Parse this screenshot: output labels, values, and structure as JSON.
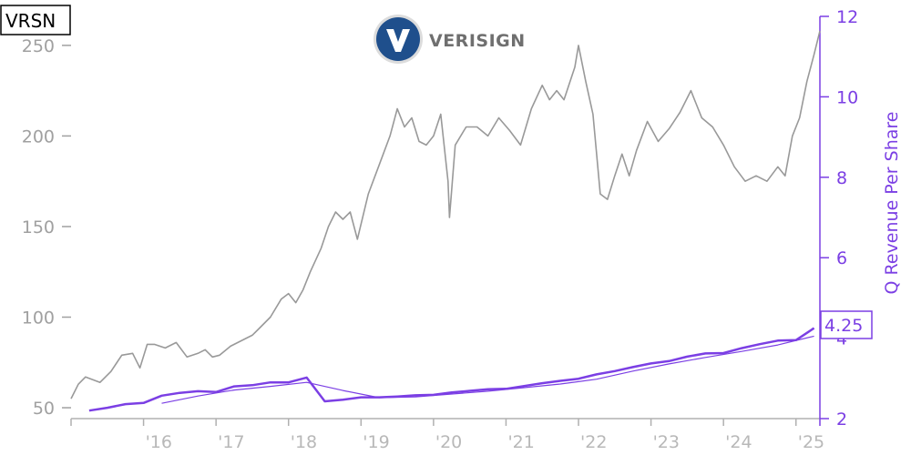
{
  "chart_data": {
    "type": "line",
    "ticker": "VRSN",
    "logo_text": "VERISIGN",
    "ylabel_right": "Q Revenue Per Share",
    "last_value_label": "4.25",
    "x_range": [
      2015.0,
      2025.33
    ],
    "y_left": {
      "range": [
        44,
        266
      ],
      "ticks": [
        50,
        100,
        150,
        200,
        250
      ],
      "tick_labels": [
        "50",
        "100",
        "150",
        "200",
        "250"
      ]
    },
    "y_right": {
      "range": [
        2,
        12
      ],
      "ticks": [
        2,
        4,
        6,
        8,
        10,
        12
      ],
      "tick_labels": [
        "2",
        "4",
        "6",
        "8",
        "10",
        "12"
      ]
    },
    "x_ticks": [
      2016,
      2017,
      2018,
      2019,
      2020,
      2021,
      2022,
      2023,
      2024,
      2025
    ],
    "x_tick_labels": [
      "'16",
      "'17",
      "'18",
      "'19",
      "'20",
      "'21",
      "'22",
      "'23",
      "'24",
      "'25"
    ],
    "colors": {
      "price": "#999999",
      "revenue": "#7b3fe4",
      "axis_left": "#a0a0a0",
      "axis_right": "#7b3fe4"
    },
    "series": [
      {
        "role": "price",
        "axis": "left",
        "x": [
          2015.0,
          2015.1,
          2015.2,
          2015.4,
          2015.55,
          2015.7,
          2015.85,
          2015.95,
          2016.05,
          2016.15,
          2016.3,
          2016.45,
          2016.6,
          2016.75,
          2016.85,
          2016.95,
          2017.05,
          2017.2,
          2017.35,
          2017.5,
          2017.6,
          2017.75,
          2017.9,
          2018.0,
          2018.1,
          2018.2,
          2018.3,
          2018.45,
          2018.55,
          2018.65,
          2018.75,
          2018.85,
          2018.95,
          2019.1,
          2019.25,
          2019.4,
          2019.5,
          2019.6,
          2019.7,
          2019.8,
          2019.9,
          2020.0,
          2020.1,
          2020.2,
          2020.22,
          2020.3,
          2020.45,
          2020.6,
          2020.75,
          2020.9,
          2021.05,
          2021.2,
          2021.35,
          2021.5,
          2021.6,
          2021.7,
          2021.8,
          2021.95,
          2022.0,
          2022.1,
          2022.2,
          2022.3,
          2022.4,
          2022.5,
          2022.6,
          2022.7,
          2022.8,
          2022.95,
          2023.1,
          2023.25,
          2023.4,
          2023.55,
          2023.7,
          2023.85,
          2024.0,
          2024.15,
          2024.3,
          2024.45,
          2024.6,
          2024.75,
          2024.85,
          2024.95,
          2025.05,
          2025.15,
          2025.25,
          2025.33
        ],
        "values": [
          55,
          63,
          67,
          64,
          70,
          79,
          80,
          72,
          85,
          85,
          83,
          86,
          78,
          80,
          82,
          78,
          79,
          84,
          87,
          90,
          94,
          100,
          110,
          113,
          108,
          115,
          125,
          138,
          150,
          158,
          154,
          158,
          143,
          168,
          184,
          200,
          215,
          205,
          210,
          197,
          195,
          200,
          212,
          175,
          155,
          195,
          205,
          205,
          200,
          210,
          203,
          195,
          215,
          228,
          220,
          225,
          220,
          238,
          250,
          230,
          212,
          168,
          165,
          178,
          190,
          178,
          192,
          208,
          197,
          204,
          213,
          225,
          210,
          205,
          195,
          183,
          175,
          178,
          175,
          183,
          178,
          200,
          210,
          230,
          245,
          258
        ]
      },
      {
        "role": "revenue",
        "axis": "right",
        "x": [
          2015.25,
          2015.5,
          2015.75,
          2016.0,
          2016.25,
          2016.5,
          2016.75,
          2017.0,
          2017.25,
          2017.5,
          2017.75,
          2018.0,
          2018.25,
          2018.5,
          2018.75,
          2019.0,
          2019.25,
          2019.5,
          2019.75,
          2020.0,
          2020.25,
          2020.5,
          2020.75,
          2021.0,
          2021.25,
          2021.5,
          2021.75,
          2022.0,
          2022.25,
          2022.5,
          2022.75,
          2023.0,
          2023.25,
          2023.5,
          2023.75,
          2024.0,
          2024.25,
          2024.5,
          2024.75,
          2025.0,
          2025.25
        ],
        "values": [
          2.2,
          2.27,
          2.36,
          2.39,
          2.57,
          2.64,
          2.68,
          2.66,
          2.8,
          2.83,
          2.9,
          2.9,
          3.02,
          2.43,
          2.47,
          2.53,
          2.53,
          2.55,
          2.58,
          2.59,
          2.65,
          2.69,
          2.73,
          2.74,
          2.81,
          2.88,
          2.94,
          2.99,
          3.1,
          3.18,
          3.28,
          3.37,
          3.43,
          3.54,
          3.62,
          3.63,
          3.75,
          3.85,
          3.94,
          3.95,
          4.25
        ]
      },
      {
        "role": "revenue-trend",
        "axis": "right",
        "x": [
          2016.25,
          2016.75,
          2017.25,
          2017.75,
          2018.25,
          2018.75,
          2019.25,
          2019.75,
          2020.25,
          2020.75,
          2021.25,
          2021.75,
          2022.25,
          2022.75,
          2023.25,
          2023.75,
          2024.25,
          2024.75,
          2025.25
        ],
        "values": [
          2.38,
          2.56,
          2.71,
          2.8,
          2.9,
          2.7,
          2.52,
          2.54,
          2.61,
          2.68,
          2.77,
          2.86,
          2.98,
          3.18,
          3.36,
          3.52,
          3.67,
          3.83,
          4.05
        ]
      }
    ]
  }
}
